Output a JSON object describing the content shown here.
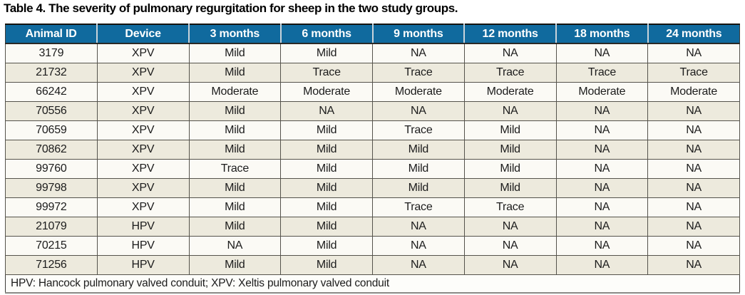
{
  "title": "Table 4. The severity of pulmonary regurgitation for sheep in the two study groups.",
  "table": {
    "columns": [
      "Animal ID",
      "Device",
      "3 months",
      "6 months",
      "9 months",
      "12 months",
      "18 months",
      "24 months"
    ],
    "rows": [
      [
        "3179",
        "XPV",
        "Mild",
        "Mild",
        "NA",
        "NA",
        "NA",
        "NA"
      ],
      [
        "21732",
        "XPV",
        "Mild",
        "Trace",
        "Trace",
        "Trace",
        "Trace",
        "Trace"
      ],
      [
        "66242",
        "XPV",
        "Moderate",
        "Moderate",
        "Moderate",
        "Moderate",
        "Moderate",
        "Moderate"
      ],
      [
        "70556",
        "XPV",
        "Mild",
        "NA",
        "NA",
        "NA",
        "NA",
        "NA"
      ],
      [
        "70659",
        "XPV",
        "Mild",
        "Mild",
        "Trace",
        "Mild",
        "NA",
        "NA"
      ],
      [
        "70862",
        "XPV",
        "Mild",
        "Mild",
        "Mild",
        "Mild",
        "NA",
        "NA"
      ],
      [
        "99760",
        "XPV",
        "Trace",
        "Mild",
        "Mild",
        "Mild",
        "NA",
        "NA"
      ],
      [
        "99798",
        "XPV",
        "Mild",
        "Mild",
        "Mild",
        "Mild",
        "NA",
        "NA"
      ],
      [
        "99972",
        "XPV",
        "Mild",
        "Mild",
        "Trace",
        "Trace",
        "NA",
        "NA"
      ],
      [
        "21079",
        "HPV",
        "Mild",
        "Mild",
        "NA",
        "NA",
        "NA",
        "NA"
      ],
      [
        "70215",
        "HPV",
        "NA",
        "Mild",
        "NA",
        "NA",
        "NA",
        "NA"
      ],
      [
        "71256",
        "HPV",
        "Mild",
        "Mild",
        "NA",
        "NA",
        "NA",
        "NA"
      ]
    ],
    "footnote": "HPV: Hancock pulmonary valved conduit; XPV: Xeltis pulmonary valved conduit"
  },
  "colors": {
    "header_bg": "#106a9e",
    "header_text": "#ffffff",
    "row_odd_bg": "#fbfaf5",
    "row_even_bg": "#edeadd",
    "cell_border": "#55534c",
    "table_top_border": "#15140f",
    "table_bottom_border": "#8a8a86",
    "body_text": "#1c1c1c"
  }
}
